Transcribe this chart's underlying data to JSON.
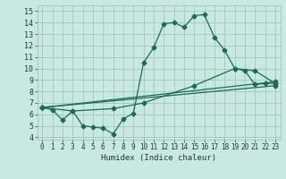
{
  "xlabel": "Humidex (Indice chaleur)",
  "bg_color": "#c8e8e0",
  "grid_color": "#a0c8c0",
  "line_color": "#1a6b5a",
  "xlim": [
    -0.5,
    23.5
  ],
  "ylim": [
    3.8,
    15.5
  ],
  "xticks": [
    0,
    1,
    2,
    3,
    4,
    5,
    6,
    7,
    8,
    9,
    10,
    11,
    12,
    13,
    14,
    15,
    16,
    17,
    18,
    19,
    20,
    21,
    22,
    23
  ],
  "yticks": [
    4,
    5,
    6,
    7,
    8,
    9,
    10,
    11,
    12,
    13,
    14,
    15
  ],
  "curve1_x": [
    0,
    1,
    2,
    3,
    4,
    5,
    6,
    7,
    8,
    9,
    10,
    11,
    12,
    13,
    14,
    15,
    16,
    17,
    18,
    19,
    20,
    21,
    22,
    23
  ],
  "curve1_y": [
    6.6,
    6.4,
    5.5,
    6.3,
    5.0,
    4.9,
    4.8,
    4.3,
    5.6,
    6.1,
    10.5,
    11.8,
    13.9,
    14.0,
    13.6,
    14.6,
    14.7,
    12.7,
    11.6,
    10.0,
    9.8,
    8.6,
    8.7,
    8.7
  ],
  "curve2_x": [
    0,
    23
  ],
  "curve2_y": [
    6.6,
    8.5
  ],
  "curve3_x": [
    0,
    23
  ],
  "curve3_y": [
    6.6,
    8.85
  ],
  "curve4_x": [
    0,
    3,
    7,
    10,
    15,
    19,
    21,
    23
  ],
  "curve4_y": [
    6.6,
    6.3,
    6.5,
    7.0,
    8.5,
    10.0,
    9.8,
    8.7
  ]
}
